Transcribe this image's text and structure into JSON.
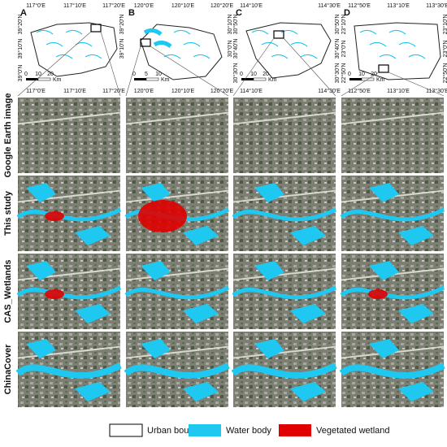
{
  "panels": [
    {
      "letter": "A",
      "top_labels": [
        "117°0'E",
        "117°10'E",
        "117°20'E"
      ],
      "bottom_labels": [
        "117°0'E",
        "117°10'E",
        "117°20'E"
      ],
      "left_labels": [
        "39°20'N",
        "39°10'N",
        "39°0'N"
      ],
      "right_labels": [
        "39°20'N",
        "39°10'N"
      ],
      "scale_labels": [
        "0",
        "10",
        "20"
      ],
      "scale_unit": "Km"
    },
    {
      "letter": "B",
      "top_labels": [
        "120°0'E",
        "120°10'E",
        "120°20'E"
      ],
      "bottom_labels": [
        "120°0'E",
        "120°10'E",
        "120°20'E"
      ],
      "left_labels": [],
      "right_labels": [
        "30°10'N",
        "30°0'N"
      ],
      "scale_labels": [
        "0",
        "5",
        "10"
      ],
      "scale_unit": "Km"
    },
    {
      "letter": "C",
      "top_labels": [
        "114°10'E",
        "114°30'E"
      ],
      "bottom_labels": [
        "114°10'E",
        "114°30'E"
      ],
      "left_labels": [
        "30°50'N",
        "30°40'N",
        "30°30'N"
      ],
      "right_labels": [
        "30°50'N",
        "30°40'N",
        "30°30'N"
      ],
      "scale_labels": [
        "0",
        "10",
        "20"
      ],
      "scale_unit": "Km"
    },
    {
      "letter": "D",
      "top_labels": [
        "112°50'E",
        "113°10'E",
        "113°30'E"
      ],
      "bottom_labels": [
        "112°50'E",
        "113°10'E",
        "113°30'E"
      ],
      "left_labels": [
        "23°10'N",
        "23°0'N",
        "22°50'N"
      ],
      "right_labels": [
        "23°10'N",
        "23°0'N",
        "22°50'N"
      ],
      "scale_labels": [
        "0",
        "10",
        "20"
      ],
      "scale_unit": "Km"
    }
  ],
  "row_labels": [
    "Google Earth image",
    "This study",
    "CAS_Wetlands",
    "ChinaCover"
  ],
  "legend": [
    "Urban boundary",
    "Water body",
    "Vegetated wetland"
  ]
}
